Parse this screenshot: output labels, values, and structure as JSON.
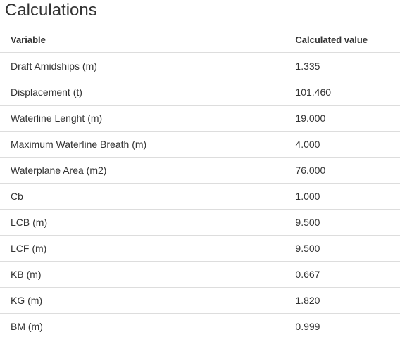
{
  "page_title": "Calculations",
  "table": {
    "headers": {
      "variable": "Variable",
      "value": "Calculated value"
    },
    "rows": [
      {
        "variable": "Draft Amidships (m)",
        "value": "1.335"
      },
      {
        "variable": "Displacement (t)",
        "value": "101.460"
      },
      {
        "variable": "Waterline Lenght (m)",
        "value": "19.000"
      },
      {
        "variable": "Maximum Waterline Breath (m)",
        "value": "4.000"
      },
      {
        "variable": "Waterplane Area (m2)",
        "value": "76.000"
      },
      {
        "variable": "Cb",
        "value": "1.000"
      },
      {
        "variable": "LCB (m)",
        "value": "9.500"
      },
      {
        "variable": "LCF (m)",
        "value": "9.500"
      },
      {
        "variable": "KB (m)",
        "value": "0.667"
      },
      {
        "variable": "KG (m)",
        "value": "1.820"
      },
      {
        "variable": "BM (m)",
        "value": "0.999"
      }
    ]
  },
  "colors": {
    "text": "#333333",
    "border": "#dddddd",
    "background": "#ffffff"
  }
}
